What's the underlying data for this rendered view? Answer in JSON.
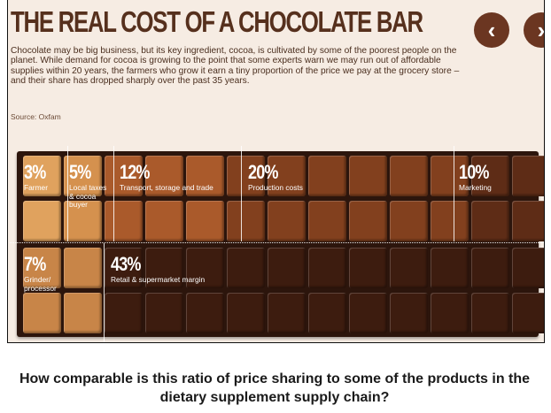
{
  "infographic": {
    "title": "THE REAL COST OF A CHOCOLATE BAR",
    "intro": "Chocolate may be big business, but its key ingredient, cocoa, is cultivated by some of the poorest people on the planet. While demand for cocoa is growing to the point that some experts warn we may run out of affordable supplies within 20 years, the farmers who grow it earn a tiny proportion of the price we pay at the grocery store – and their share has dropped sharply over the past 35 years.",
    "source": "Source: Oxfam",
    "nav": {
      "prev_icon": "chevron-left-icon",
      "next_icon": "chevron-right-icon"
    },
    "segments": [
      {
        "id": "farmer",
        "pct": "3%",
        "label": "Farmer",
        "share": 3,
        "color": "#e0a25e"
      },
      {
        "id": "local-taxes",
        "pct": "5%",
        "label": "Local taxes & cocoa buyer",
        "share": 5,
        "color": "#d5914e"
      },
      {
        "id": "transport",
        "pct": "12%",
        "label": "Transport, storage and trade",
        "share": 12,
        "color": "#aa5a2b"
      },
      {
        "id": "production",
        "pct": "20%",
        "label": "Production costs",
        "share": 20,
        "color": "#82401e"
      },
      {
        "id": "marketing",
        "pct": "10%",
        "label": "Marketing",
        "share": 10,
        "color": "#5e2c16"
      },
      {
        "id": "grinder",
        "pct": "7%",
        "label": "Grinder/ processor",
        "share": 7,
        "color": "#c88548"
      },
      {
        "id": "retail",
        "pct": "43%",
        "label": "Retail & supermarket margin",
        "share": 43,
        "color": "#3d1c0f"
      }
    ]
  },
  "caption": "How comparable is this ratio of price sharing to some of the products in the dietary supplement supply chain?"
}
